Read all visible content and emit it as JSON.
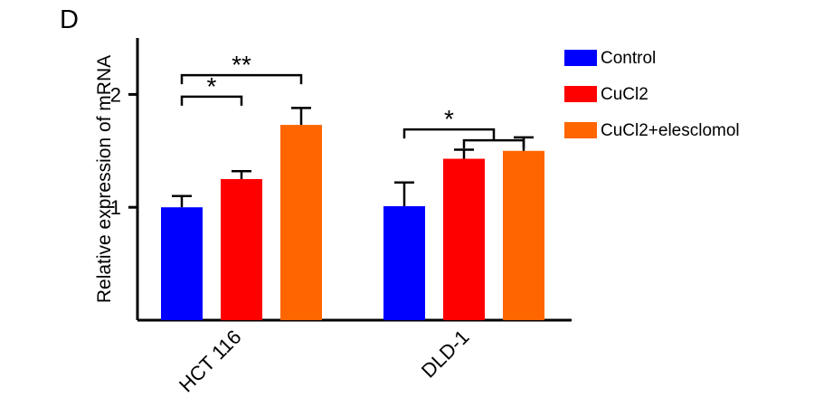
{
  "panel_label": "D",
  "chart_data": {
    "type": "bar",
    "title": "",
    "xlabel": "",
    "ylabel": "Relative expression of mRNA",
    "ylim": [
      0,
      2.5
    ],
    "yticks": [
      1,
      2
    ],
    "categories": [
      "HCT 116",
      "DLD-1"
    ],
    "series": [
      {
        "name": "Control",
        "color": "#0000ff",
        "values": [
          1.0,
          1.01
        ],
        "errors": [
          0.1,
          0.21
        ]
      },
      {
        "name": "CuCl2",
        "color": "#ff0000",
        "values": [
          1.25,
          1.43
        ],
        "errors": [
          0.07,
          0.08
        ]
      },
      {
        "name": "CuCl2+elesclomol",
        "color": "#ff6600",
        "values": [
          1.73,
          1.5
        ],
        "errors": [
          0.15,
          0.12
        ]
      }
    ],
    "legend_position": "right",
    "grid": false,
    "annotations": [
      {
        "label": "*",
        "group": "HCT 116",
        "from": "Control",
        "to": "CuCl2",
        "y": 1.98
      },
      {
        "label": "**",
        "group": "HCT 116",
        "from": "Control",
        "to": "CuCl2+elesclomol",
        "y": 2.17
      },
      {
        "label": "*",
        "group": "DLD-1",
        "from": "Control",
        "to": "CuCl2-CuCl2+elesclomol",
        "y": 1.69
      }
    ]
  }
}
